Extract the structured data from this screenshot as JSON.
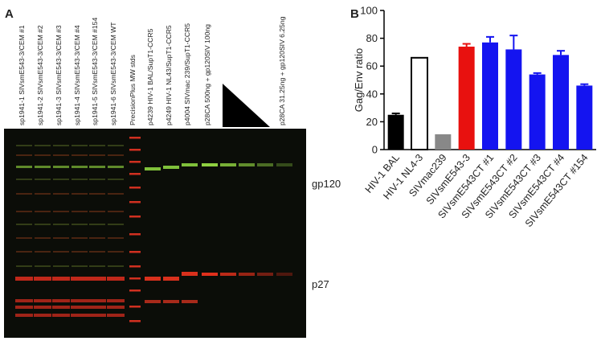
{
  "panel_a": {
    "label": "A",
    "lanes": [
      "sp1941-1 SIVsmE543-3/CEM #1",
      "sp1941-2 SIVsmE543-3/CEM #2",
      "sp1941-3 SIVsmE543-3/CEM #3",
      "sp1941-4 SIVsmE543-3/CEM #4",
      "sp1941-5 SIVsmE543-3/CEM #154",
      "sp1941-6 SIVsmE543-3/CEM WT",
      "PrecisionPlus MW stds",
      "p4239 HIV-1 BAL/SupT1-CCR5",
      "p4249 HIV-1 NL43/SupT1-CCR5",
      "p4004 SIVmac 239/SupT1-CCR5",
      "p28CA 500ng + gp120SIV 100ng",
      "p28CA 31.25ng + gp120SIV 6.25ng"
    ],
    "bands": [
      "gp120",
      "p27"
    ]
  },
  "chart_data": {
    "type": "bar",
    "label": "B",
    "ylabel": "Gag/Env ratio",
    "categories": [
      "HIV-1 BAL",
      "HIV-1 NL4-3",
      "SIVmac239",
      "SIVsmE543-3",
      "SIVsmE543CT #1",
      "SIVsmE543CT #2",
      "SIVsmE543CT #3",
      "SIVsmE543CT #4",
      "SIVsmE543CT #154"
    ],
    "values": [
      25,
      66,
      11,
      74,
      77,
      72,
      54,
      68,
      46
    ],
    "errors": [
      1,
      null,
      null,
      2,
      4,
      10,
      1,
      3,
      1
    ],
    "colors": [
      "#000000",
      "#ffffff",
      "#888888",
      "#e8110f",
      "#1414f0",
      "#1414f0",
      "#1414f0",
      "#1414f0",
      "#1414f0"
    ],
    "ylim": [
      0,
      100
    ],
    "yticks": [
      0,
      20,
      40,
      60,
      80,
      100
    ]
  }
}
